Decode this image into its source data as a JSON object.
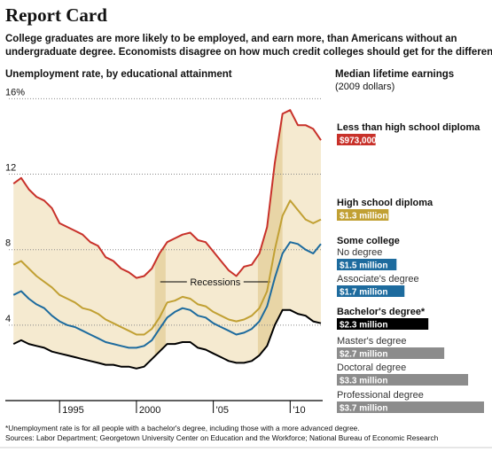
{
  "header": {
    "title": "Report Card",
    "subtitle": [
      "College graduates are more likely to be employed, and earn more, than Americans without an",
      "undergraduate degree. Economists disagree on how much credit colleges should get for the difference."
    ]
  },
  "footnote": "*Unemployment rate is for all people with a bachelor's degree, including those with a more advanced degree.",
  "source": "Sources: Labor Department; Georgetown University Center on Education and the Workforce; National Bureau of Economic Research",
  "chart_data": [
    {
      "type": "line",
      "title": "Unemployment rate, by educational attainment",
      "x": [
        1992,
        1992.5,
        1993,
        1993.5,
        1994,
        1994.5,
        1995,
        1995.5,
        1996,
        1996.5,
        1997,
        1997.5,
        1998,
        1998.5,
        1999,
        1999.5,
        2000,
        2000.5,
        2001,
        2001.5,
        2002,
        2002.5,
        2003,
        2003.5,
        2004,
        2004.5,
        2005,
        2005.5,
        2006,
        2006.5,
        2007,
        2007.5,
        2008,
        2008.5,
        2009,
        2009.5,
        2010,
        2010.5,
        2011,
        2011.5,
        2012
      ],
      "series": [
        {
          "color": "#c8312a",
          "values": [
            11.5,
            11.8,
            11.2,
            10.8,
            10.6,
            10.2,
            9.4,
            9.2,
            9.0,
            8.8,
            8.4,
            8.2,
            7.6,
            7.4,
            7.0,
            6.8,
            6.5,
            6.6,
            7.0,
            7.8,
            8.4,
            8.6,
            8.8,
            8.9,
            8.5,
            8.4,
            7.9,
            7.4,
            6.9,
            6.6,
            7.1,
            7.2,
            7.8,
            9.2,
            12.6,
            15.2,
            15.4,
            14.6,
            14.6,
            14.4,
            13.8
          ]
        },
        {
          "color": "#c1a033",
          "values": [
            7.2,
            7.4,
            7.0,
            6.6,
            6.3,
            6.0,
            5.6,
            5.4,
            5.2,
            4.9,
            4.8,
            4.6,
            4.3,
            4.1,
            3.9,
            3.7,
            3.5,
            3.5,
            3.8,
            4.4,
            5.2,
            5.3,
            5.5,
            5.4,
            5.1,
            5.0,
            4.7,
            4.5,
            4.3,
            4.2,
            4.3,
            4.5,
            4.9,
            5.8,
            8.0,
            9.8,
            10.6,
            10.1,
            9.6,
            9.4,
            9.6
          ]
        },
        {
          "color": "#1d6b9e",
          "values": [
            5.6,
            5.8,
            5.4,
            5.1,
            4.9,
            4.5,
            4.2,
            4.0,
            3.9,
            3.7,
            3.5,
            3.3,
            3.1,
            3.0,
            2.9,
            2.8,
            2.8,
            2.9,
            3.2,
            3.8,
            4.4,
            4.7,
            4.9,
            4.8,
            4.5,
            4.4,
            4.1,
            3.9,
            3.7,
            3.5,
            3.6,
            3.8,
            4.2,
            5.0,
            6.5,
            7.8,
            8.4,
            8.3,
            8.0,
            7.8,
            8.3
          ]
        },
        {
          "color": "#000000",
          "values": [
            3.0,
            3.2,
            3.0,
            2.9,
            2.8,
            2.6,
            2.5,
            2.4,
            2.3,
            2.2,
            2.1,
            2.0,
            1.9,
            1.9,
            1.8,
            1.8,
            1.7,
            1.8,
            2.2,
            2.6,
            3.0,
            3.0,
            3.1,
            3.1,
            2.8,
            2.7,
            2.5,
            2.3,
            2.1,
            2.0,
            2.0,
            2.1,
            2.4,
            2.9,
            4.0,
            4.8,
            4.8,
            4.6,
            4.5,
            4.2,
            4.1
          ]
        }
      ],
      "xlim": [
        1991.7,
        2012.0
      ],
      "xticks": [
        1995,
        2000,
        {
          "value": 2005,
          "label": "'05"
        },
        {
          "value": 2010,
          "label": "'10"
        }
      ],
      "ylim": [
        0,
        16.3
      ],
      "yticks": [
        4,
        8,
        12,
        {
          "value": 16,
          "label": "16%"
        }
      ],
      "grid": true,
      "band_color": "#f5ead0",
      "recessions": [
        [
          2001.2,
          2001.9
        ],
        [
          2007.9,
          2009.5
        ]
      ],
      "recession_color": "#e8d5a6",
      "recession_label": "Recessions"
    },
    {
      "type": "bar",
      "title": "Median lifetime earnings",
      "subtitle": "(2009 dollars)",
      "group_label": "Some college",
      "categories": [
        "Less than high school diploma",
        "High school diploma",
        "No degree",
        "Associate's degree",
        "Bachelor's degree*",
        "Master's degree",
        "Doctoral degree",
        "Professional degree"
      ],
      "values": [
        973000,
        1300000,
        1500000,
        1700000,
        2300000,
        2700000,
        3300000,
        3700000
      ],
      "value_labels": [
        "$973,000",
        "$1.3 million",
        "$1.5 million",
        "$1.7 million",
        "$2.3 million",
        "$2.7 million",
        "$3.3 million",
        "$3.7 million"
      ],
      "colors": [
        "#c8312a",
        "#c1a033",
        "#1d6b9e",
        "#1d6b9e",
        "#000000",
        "#8c8c8c",
        "#8c8c8c",
        "#8c8c8c"
      ]
    }
  ]
}
